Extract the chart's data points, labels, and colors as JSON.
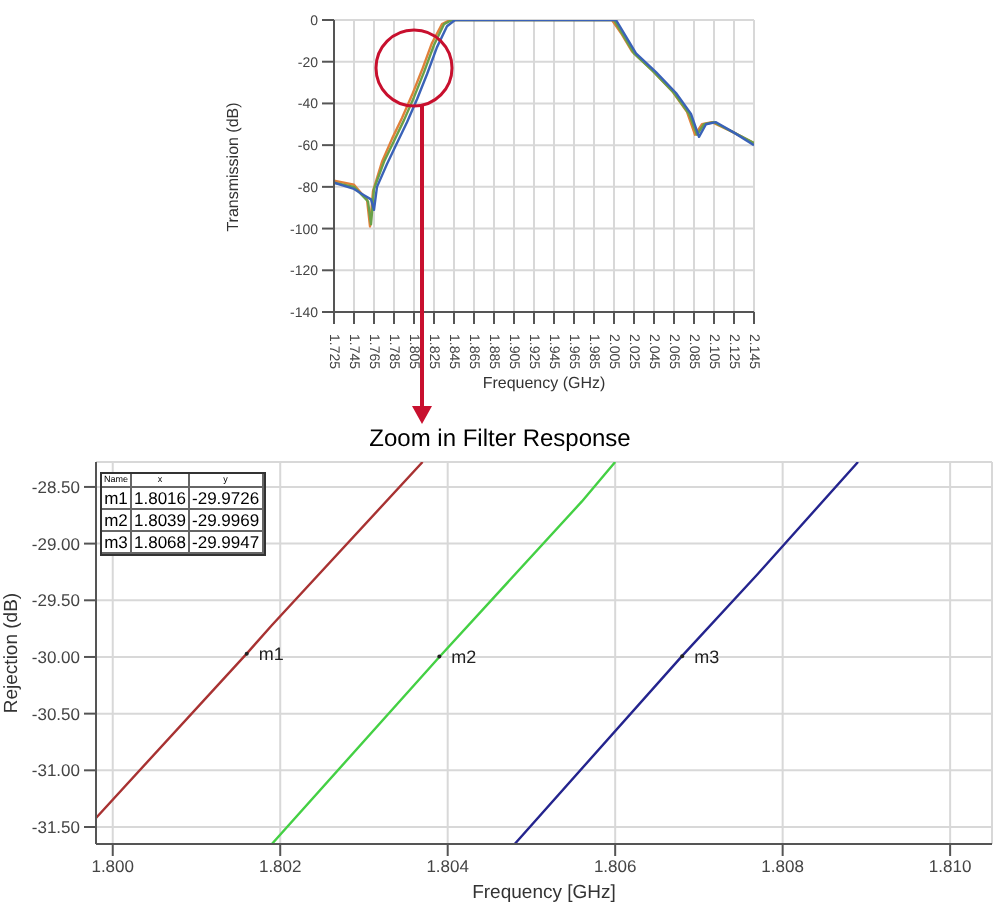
{
  "chart_data": [
    {
      "type": "line",
      "xlabel": "Frequency (GHz)",
      "ylabel": "Transmission (dB)",
      "xlim": [
        1.725,
        2.145
      ],
      "ylim": [
        -140,
        0
      ],
      "xticks": [
        1.725,
        1.745,
        1.765,
        1.785,
        1.805,
        1.825,
        1.845,
        1.865,
        1.885,
        1.905,
        1.925,
        1.945,
        1.965,
        1.985,
        2.005,
        2.025,
        2.045,
        2.065,
        2.085,
        2.105,
        2.125,
        2.145
      ],
      "yticks": [
        0,
        -20,
        -40,
        -60,
        -80,
        -100,
        -120,
        -140
      ],
      "grid": true,
      "marker": "none",
      "series": [
        {
          "color": "#e0803a",
          "x": [
            1.725,
            1.745,
            1.752,
            1.758,
            1.761,
            1.764,
            1.773,
            1.783,
            1.793,
            1.803,
            1.813,
            1.823,
            1.833,
            1.841,
            2.003,
            2.013,
            2.023,
            2.043,
            2.063,
            2.078,
            2.086,
            2.093,
            2.103,
            2.125,
            2.145
          ],
          "values": [
            -77,
            -79,
            -83,
            -86,
            -99,
            -82,
            -68,
            -57,
            -47,
            -36,
            -24,
            -11,
            -2,
            0,
            0,
            -7,
            -15,
            -24,
            -34,
            -44,
            -55,
            -50,
            -49,
            -54,
            -59
          ]
        },
        {
          "color": "#6aa048",
          "x": [
            1.725,
            1.745,
            1.753,
            1.759,
            1.762,
            1.765,
            1.775,
            1.785,
            1.795,
            1.805,
            1.815,
            1.825,
            1.835,
            1.843,
            2.005,
            2.015,
            2.025,
            2.045,
            2.065,
            2.08,
            2.088,
            2.095,
            2.105,
            2.125,
            2.145
          ],
          "values": [
            -78,
            -80,
            -84,
            -87,
            -98,
            -81,
            -68,
            -58,
            -48,
            -37,
            -25,
            -12,
            -2,
            0,
            0,
            -8,
            -16,
            -25,
            -35,
            -45,
            -55,
            -50,
            -49,
            -54,
            -59
          ]
        },
        {
          "color": "#3a62b8",
          "x": [
            1.725,
            1.745,
            1.755,
            1.762,
            1.765,
            1.768,
            1.778,
            1.788,
            1.798,
            1.808,
            1.818,
            1.828,
            1.838,
            1.846,
            2.007,
            2.017,
            2.027,
            2.047,
            2.067,
            2.082,
            2.09,
            2.097,
            2.107,
            2.125,
            2.145
          ],
          "values": [
            -78,
            -81,
            -84,
            -86,
            -91,
            -80,
            -69,
            -59,
            -49,
            -38,
            -26,
            -13,
            -3,
            0,
            0,
            -8,
            -16,
            -25,
            -35,
            -45,
            -56,
            -50,
            -49,
            -54,
            -60
          ]
        }
      ]
    },
    {
      "type": "line",
      "title": "Zoom in Filter Response",
      "xlabel": "Frequency [GHz]",
      "ylabel": "Rejection (dB)",
      "xlim": [
        1.7998,
        1.8105
      ],
      "ylim": [
        -31.65,
        -28.28
      ],
      "xticks": [
        {
          "value": 1.8,
          "label": "1.800"
        },
        {
          "value": 1.802,
          "label": "1.802"
        },
        {
          "value": 1.804,
          "label": "1.804"
        },
        {
          "value": 1.806,
          "label": "1.806"
        },
        {
          "value": 1.808,
          "label": "1.808"
        },
        {
          "value": 1.81,
          "label": "1.810"
        }
      ],
      "yticks": [
        {
          "value": -28.5,
          "label": "-28.50"
        },
        {
          "value": -29,
          "label": "-29.00"
        },
        {
          "value": -29.5,
          "label": "-29.50"
        },
        {
          "value": -30,
          "label": "-30.00"
        },
        {
          "value": -30.5,
          "label": "-30.50"
        },
        {
          "value": -31,
          "label": "-31.00"
        },
        {
          "value": -31.5,
          "label": "-31.50"
        }
      ],
      "grid": true,
      "marker": "none",
      "series": [
        {
          "color": "#a83232",
          "x": [
            1.7998,
            1.8016,
            1.8019,
            1.8037
          ],
          "values": [
            -31.42,
            -29.97,
            -29.72,
            -28.28
          ]
        },
        {
          "color": "#44d044",
          "x": [
            1.8019,
            1.8039,
            1.8056,
            1.806
          ],
          "values": [
            -31.65,
            -30.0,
            -28.63,
            -28.28
          ]
        },
        {
          "color": "#24248e",
          "x": [
            1.8048,
            1.8068,
            1.8077,
            1.8089
          ],
          "values": [
            -31.65,
            -29.99,
            -29.27,
            -28.28
          ]
        }
      ],
      "annotations": [
        "Name",
        "x",
        "y",
        "m1",
        "1.8016",
        "-29.9726",
        "m2",
        "1.8039",
        "-29.9969",
        "m3",
        "1.8068",
        "-29.9947",
        {
          "text": "m1",
          "x": 1.8016,
          "y": -29.9726
        },
        {
          "text": "m2",
          "x": 1.8039,
          "y": -29.9969
        },
        {
          "text": "m3",
          "x": 1.8068,
          "y": -29.9947
        }
      ]
    }
  ]
}
